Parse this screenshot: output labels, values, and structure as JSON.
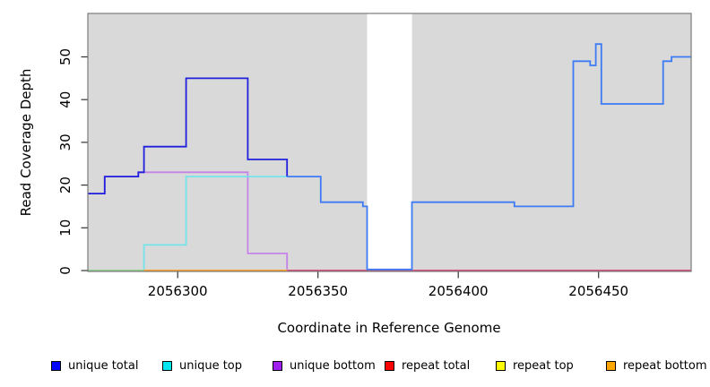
{
  "chart_data": {
    "type": "line",
    "subtype": "step-coverage",
    "xlabel": "Coordinate in Reference Genome",
    "ylabel": "Read Coverage Depth",
    "x_ticks": [
      2056300,
      2056350,
      2056400,
      2056450
    ],
    "y_ticks": [
      0,
      10,
      20,
      30,
      40,
      50
    ],
    "x_domain": [
      2056268,
      2056483
    ],
    "y_domain": [
      0,
      60
    ],
    "grid": "off",
    "plot_background": "#d9d9d9",
    "box_color": "#7a7a7a",
    "no_data_region": {
      "from": 2056367.5,
      "to": 2056383.5,
      "color": "#ffffff"
    },
    "series": [
      {
        "name": "unique total",
        "line_color": "#2121dd",
        "line_color_after": "#3d7bf5",
        "color_change_x": 2056339,
        "points": [
          [
            2056268,
            18
          ],
          [
            2056274,
            22
          ],
          [
            2056286,
            23
          ],
          [
            2056288,
            29
          ],
          [
            2056303,
            45
          ],
          [
            2056325,
            26
          ],
          [
            2056339,
            22
          ],
          [
            2056351,
            16
          ],
          [
            2056366,
            15
          ],
          [
            2056367.5,
            0
          ],
          [
            2056383.5,
            16
          ],
          [
            2056420,
            15
          ],
          [
            2056441,
            49
          ],
          [
            2056447,
            48
          ],
          [
            2056449,
            53
          ],
          [
            2056451,
            39
          ],
          [
            2056473,
            49
          ],
          [
            2056476,
            50
          ]
        ],
        "end": 2056483
      },
      {
        "name": "unique top",
        "line_color": "#74e4ec",
        "points": [
          [
            2056288,
            0
          ],
          [
            2056288,
            6
          ],
          [
            2056303,
            22
          ]
        ],
        "end": 2056339
      },
      {
        "name": "unique bottom",
        "line_color": "#c583e8",
        "points": [
          [
            2056268,
            18
          ],
          [
            2056274,
            22
          ],
          [
            2056286,
            23
          ],
          [
            2056325,
            4
          ],
          [
            2056339,
            0
          ]
        ],
        "end": 2056339
      },
      {
        "name": "repeat total",
        "line_color": "#d6527b",
        "points": [
          [
            2056268,
            0
          ]
        ],
        "end": 2056483
      },
      {
        "name": "repeat top",
        "line_color": "#ffff00",
        "points": [
          [
            2056268,
            0
          ]
        ],
        "end": 2056483
      },
      {
        "name": "repeat bottom",
        "line_color": "#ffa126",
        "points": [
          [
            2056268,
            0
          ]
        ],
        "end": 2056483
      }
    ],
    "zero_line_segments": [
      {
        "color": "#8fcf8f",
        "from": 2056268,
        "to": 2056288
      },
      {
        "color": "#ffa126",
        "from": 2056288,
        "to": 2056339
      },
      {
        "color": "#d6527b",
        "from": 2056339,
        "to": 2056483
      }
    ],
    "legend_position": "bottom"
  },
  "legend": {
    "items": [
      {
        "label": "unique total",
        "color": "#0000ff"
      },
      {
        "label": "unique top",
        "color": "#00e5ee"
      },
      {
        "label": "unique bottom",
        "color": "#a020f0"
      },
      {
        "label": "repeat total",
        "color": "#ff0000"
      },
      {
        "label": "repeat top",
        "color": "#ffff00"
      },
      {
        "label": "repeat bottom",
        "color": "#ffa500"
      }
    ]
  }
}
